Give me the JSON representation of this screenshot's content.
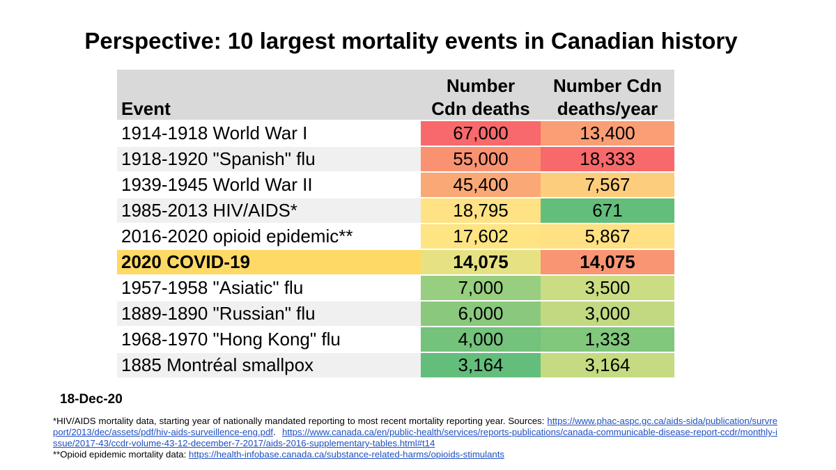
{
  "title": "Perspective: 10 largest mortality events in Canadian history",
  "date": "18-Dec-20",
  "chart_data": {
    "type": "table",
    "title": "Perspective: 10 largest mortality events in Canadian history",
    "columns": [
      "Event",
      "Number Cdn deaths",
      "Number Cdn deaths/year"
    ],
    "rows": [
      {
        "event": "1914-1918 World War I",
        "deaths": "67,000",
        "per_year": "13,400",
        "deaths_color": "#f8696b",
        "per_year_color": "#fa9e75"
      },
      {
        "event": "1918-1920 \"Spanish\" flu",
        "deaths": "55,000",
        "per_year": "18,333",
        "deaths_color": "#fa9272",
        "per_year_color": "#f8696b"
      },
      {
        "event": "1939-1945 World War II",
        "deaths": "45,400",
        "per_year": "7,567",
        "deaths_color": "#fba877",
        "per_year_color": "#fdcd7e"
      },
      {
        "event": "1985-2013 HIV/AIDS*",
        "deaths": "18,795",
        "per_year": "671",
        "deaths_color": "#ffe283",
        "per_year_color": "#63be7b"
      },
      {
        "event": "2016-2020 opioid epidemic**",
        "deaths": "17,602",
        "per_year": "5,867",
        "deaths_color": "#ffe483",
        "per_year_color": "#ffe082"
      },
      {
        "event": "2020 COVID-19",
        "deaths": "14,075",
        "per_year": "14,075",
        "deaths_color": "#e6e283",
        "per_year_color": "#fa9573",
        "highlight": true
      },
      {
        "event": "1957-1958 \"Asiatic\" flu",
        "deaths": "7,000",
        "per_year": "3,500",
        "deaths_color": "#98ce7f",
        "per_year_color": "#cadd82"
      },
      {
        "event": "1889-1890 \"Russian\" flu",
        "deaths": "6,000",
        "per_year": "3,000",
        "deaths_color": "#8ac97d",
        "per_year_color": "#c1da81"
      },
      {
        "event": "1968-1970 \"Hong Kong\" flu",
        "deaths": "4,000",
        "per_year": "1,333",
        "deaths_color": "#74c27c",
        "per_year_color": "#81c77c"
      },
      {
        "event": "1885 Montréal smallpox",
        "deaths": "3,164",
        "per_year": "3,164",
        "deaths_color": "#63be7b",
        "per_year_color": "#c4db81"
      }
    ]
  },
  "headers": {
    "event": "Event",
    "deaths_line1": "Number",
    "deaths_line2": "Cdn deaths",
    "rate_line1": "Number Cdn",
    "rate_line2": "deaths/year"
  },
  "footnotes": {
    "hiv_text": "*HIV/AIDS mortality data, starting year of nationally mandated reporting to most recent mortality reporting year. Sources: ",
    "hiv_link1": "https://www.phac-aspc.gc.ca/aids-sida/publication/survreport/2013/dec/assets/pdf/hiv-aids-surveillence-eng.pdf",
    "hiv_sep": ".  ",
    "hiv_link2": "https://www.canada.ca/en/public-health/services/reports-publications/canada-communicable-disease-report-ccdr/monthly-issue/2017-43/ccdr-volume-43-12-december-7-2017/aids-2016-supplementary-tables.html#t14",
    "opioid_text": "**Opioid epidemic mortality data: ",
    "opioid_link": "https://health-infobase.canada.ca/substance-related-harms/opioids-stimulants"
  }
}
